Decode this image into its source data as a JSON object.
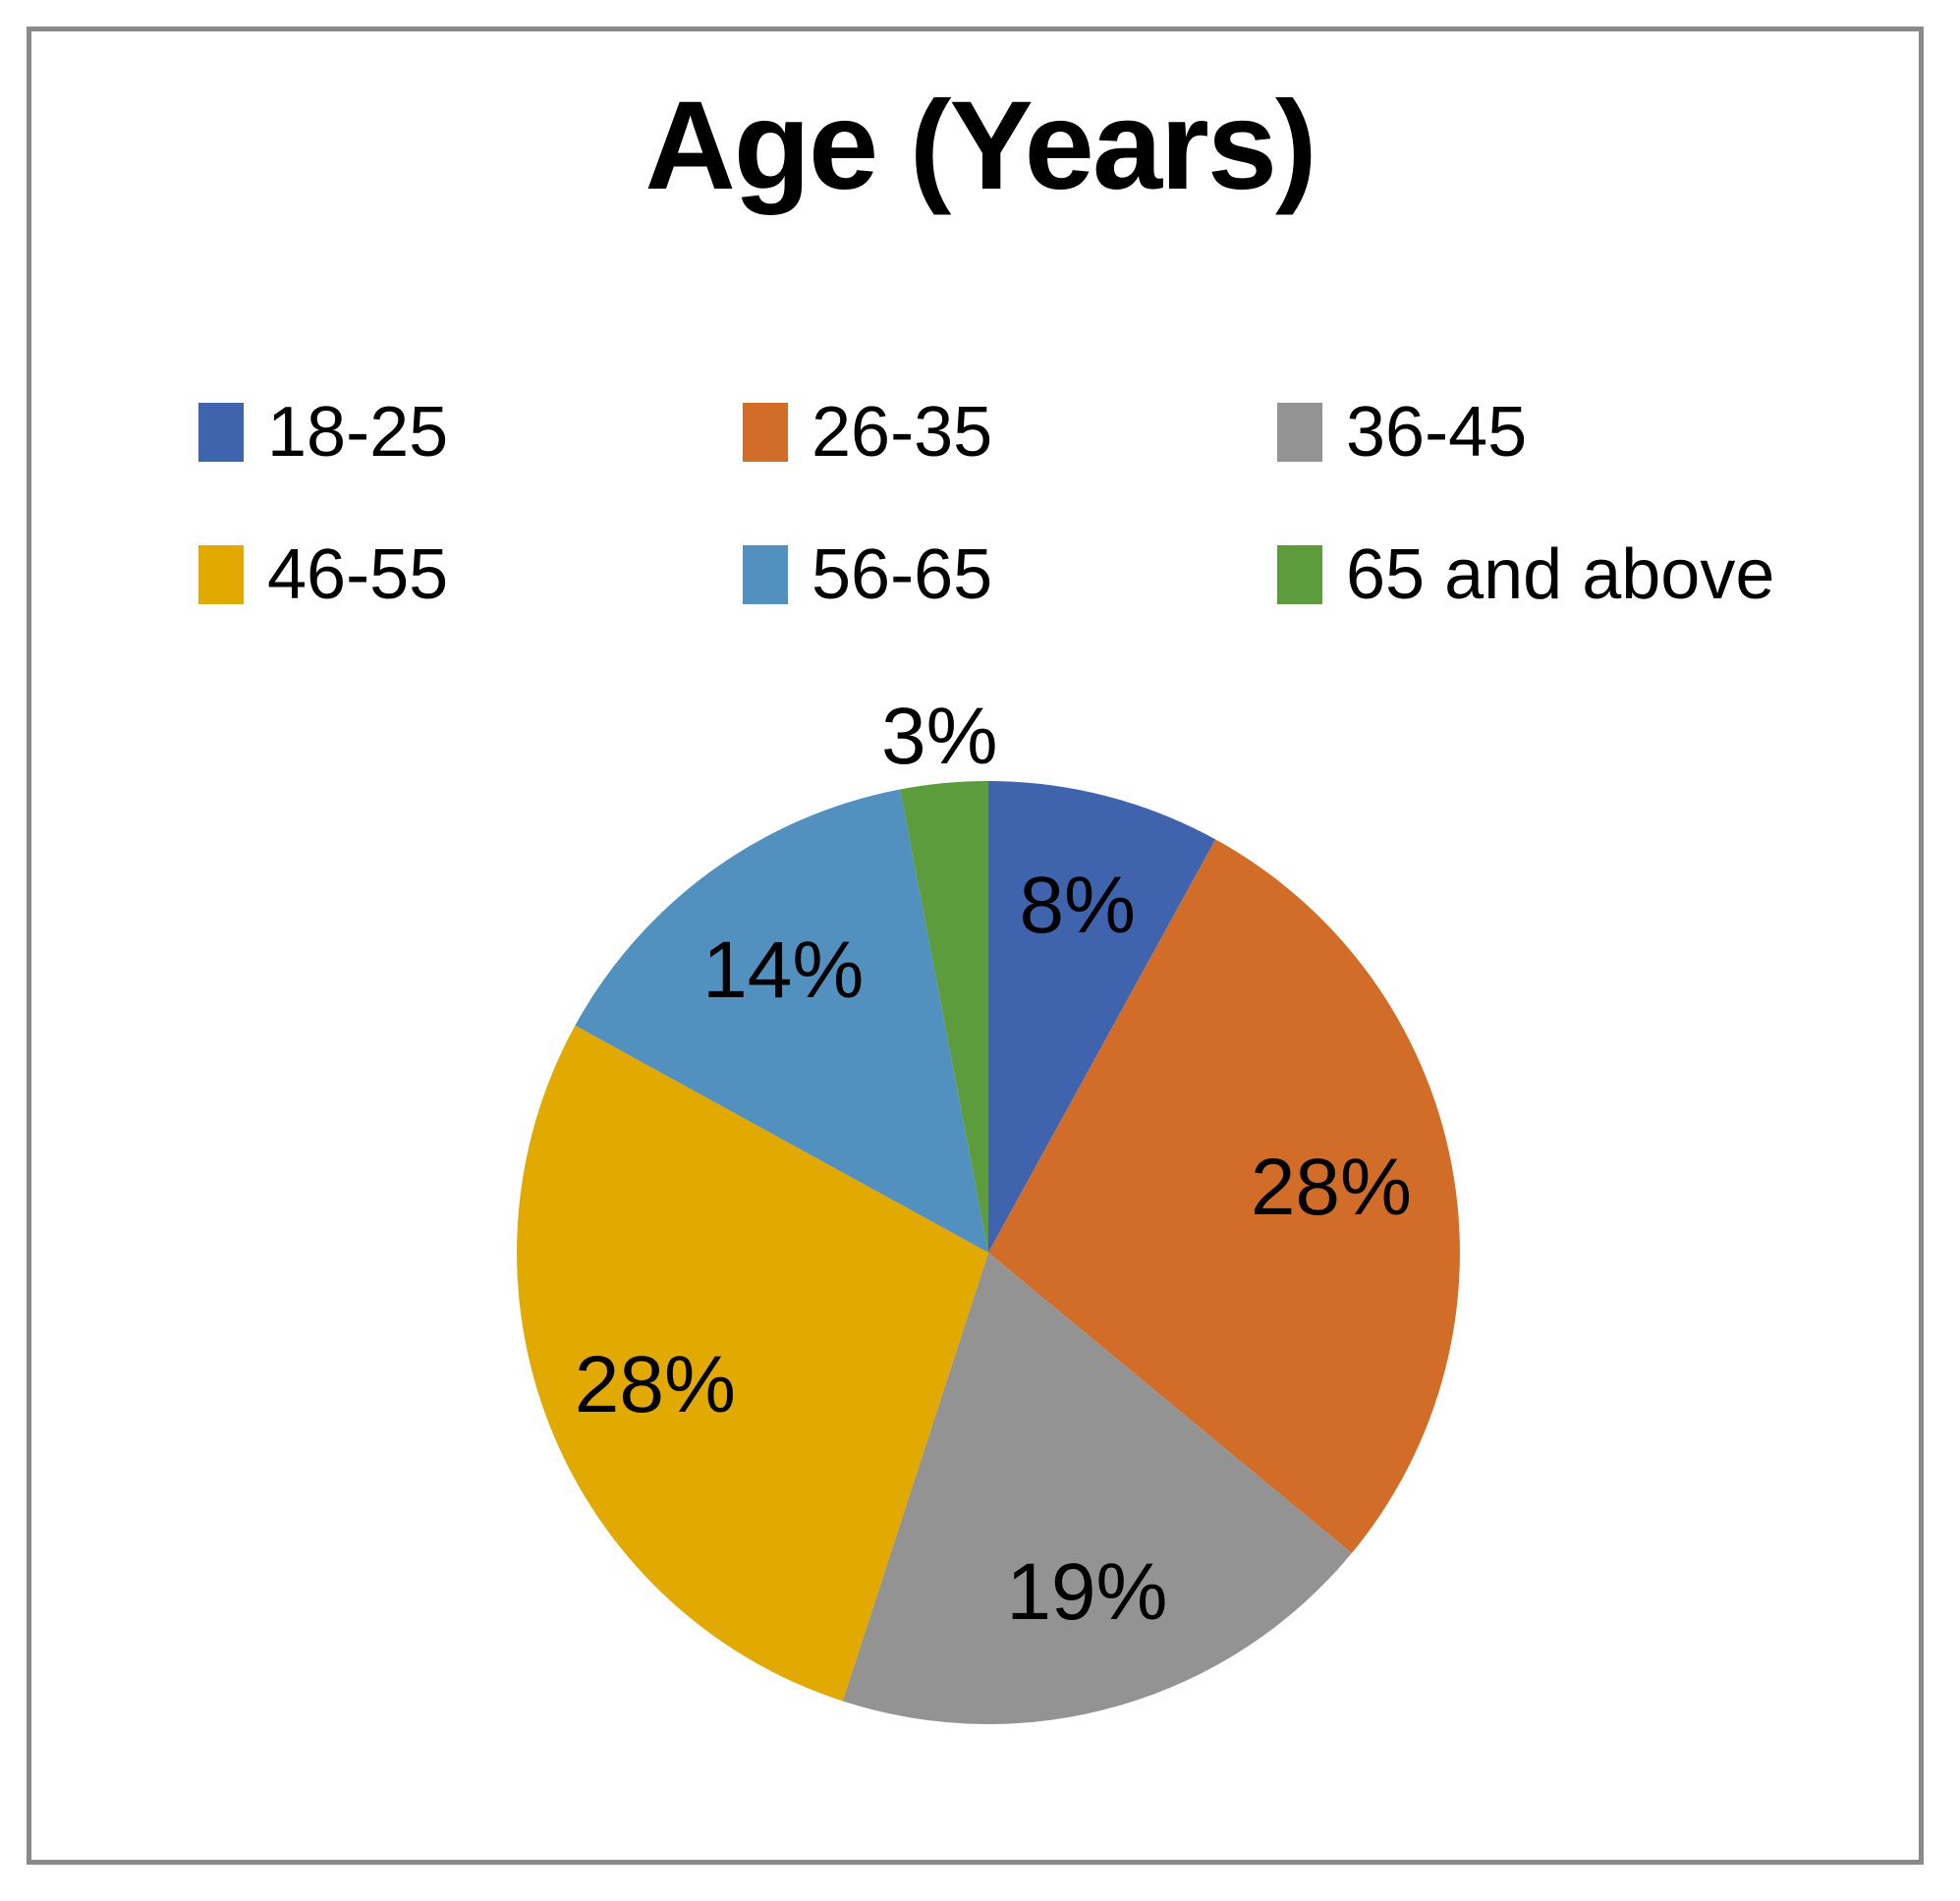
{
  "title": "Age (Years)",
  "frame": {
    "border_color": "#8A8A8A",
    "background": "#FFFFFF"
  },
  "chart_data": {
    "type": "pie",
    "title": "Age (Years)",
    "categories": [
      "18-25",
      "26-35",
      "36-45",
      "46-55",
      "56-65",
      "65 and above"
    ],
    "values": [
      8,
      28,
      19,
      28,
      14,
      3
    ],
    "unit": "percent",
    "data_labels": [
      "8%",
      "28%",
      "19%",
      "28%",
      "14%",
      "3%"
    ],
    "colors": [
      "#3F64AD",
      "#D16D28",
      "#939393",
      "#E2A900",
      "#5290C0",
      "#5C9C3D"
    ],
    "start_angle_deg": 0,
    "direction": "clockwise",
    "legend_position": "top",
    "label_radius_frac": [
      0.76,
      0.74,
      0.75,
      0.76,
      0.74,
      1.1
    ]
  },
  "legend": {
    "items": [
      {
        "label": "18-25",
        "color": "#3F64AD"
      },
      {
        "label": "26-35",
        "color": "#D16D28"
      },
      {
        "label": "36-45",
        "color": "#939393"
      },
      {
        "label": "46-55",
        "color": "#E2A900"
      },
      {
        "label": "56-65",
        "color": "#5290C0"
      },
      {
        "label": "65 and above",
        "color": "#5C9C3D"
      }
    ]
  }
}
